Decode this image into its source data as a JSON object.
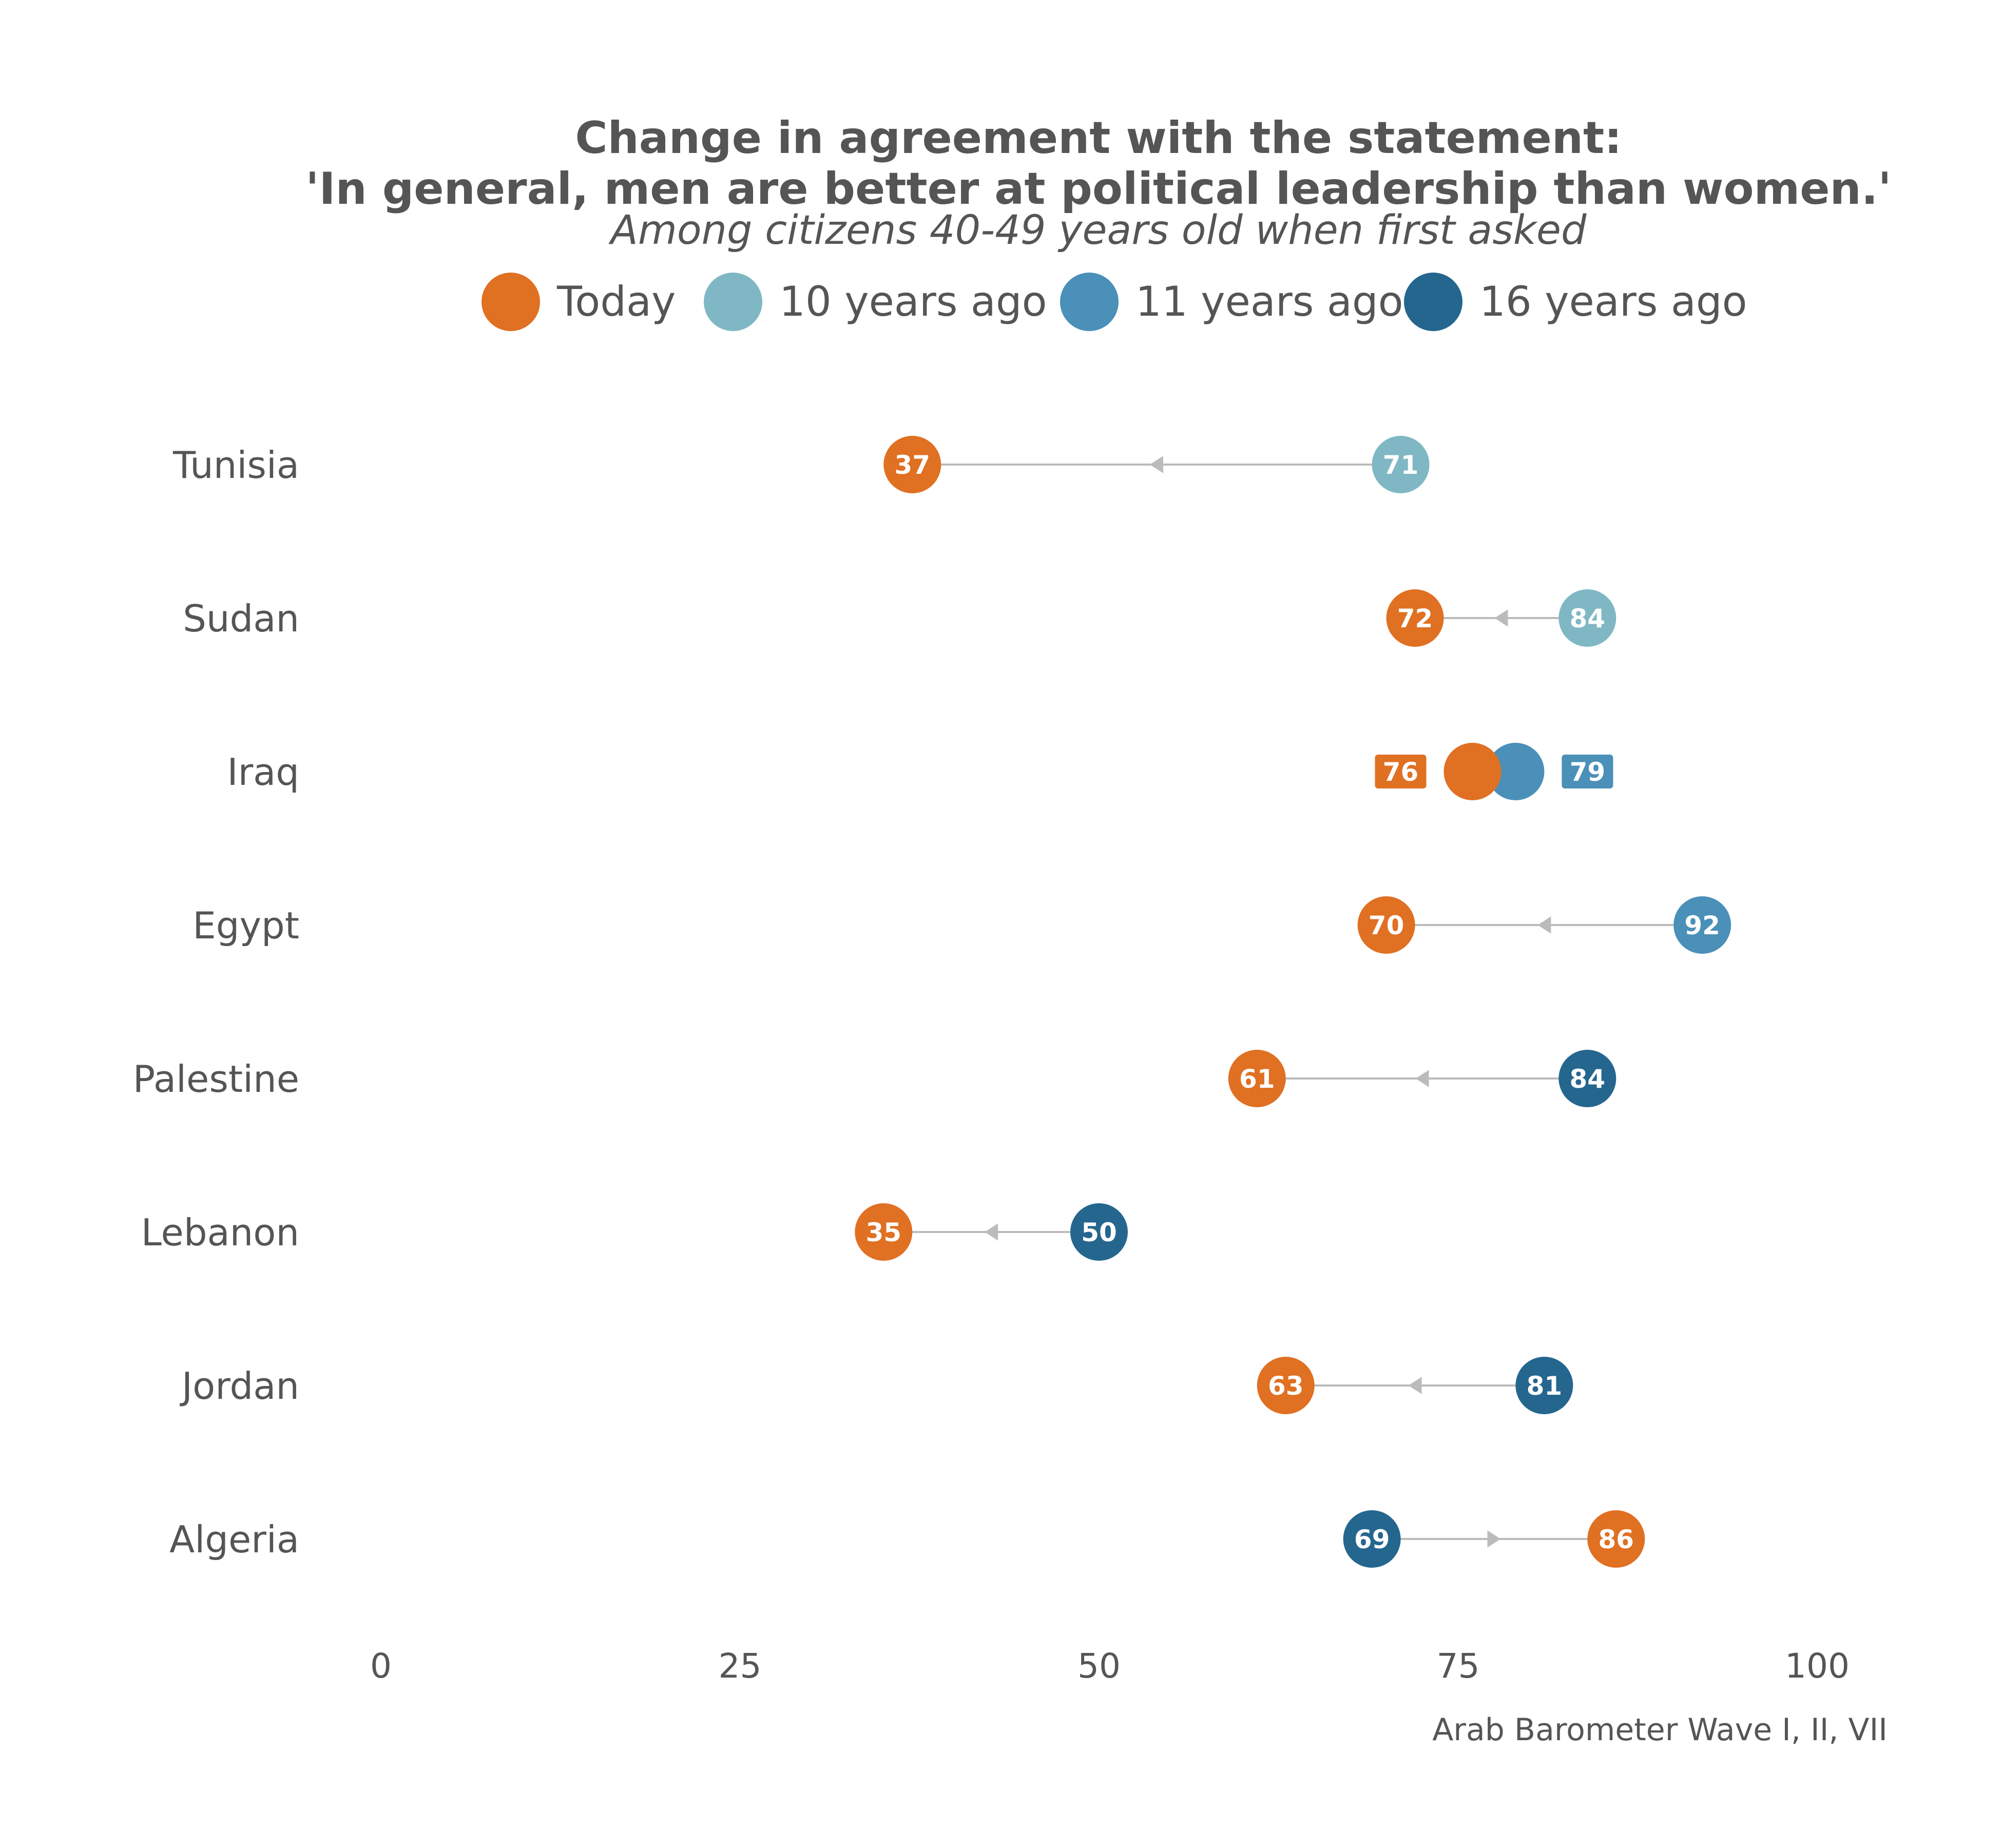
{
  "chart_data": {
    "type": "dumbbell",
    "title_lines": [
      "Change in agreement with the statement:",
      "'In general, men are better at political leadership than women.'"
    ],
    "subtitle": "Among citizens 40-49 years old when first asked",
    "source": "Arab Barometer Wave I, II, VII",
    "legend_position": "top",
    "xlim": [
      0,
      100
    ],
    "x_ticks": [
      0,
      25,
      50,
      75,
      100
    ],
    "x_tick_labels": [
      "0",
      "25",
      "50",
      "75",
      "100"
    ],
    "grid": false,
    "legend": [
      {
        "key": "today",
        "label": "Today",
        "color": "#E07022"
      },
      {
        "key": "y10",
        "label": "10 years ago",
        "color": "#7FB8C4"
      },
      {
        "key": "y11",
        "label": "11 years ago",
        "color": "#4A90B8"
      },
      {
        "key": "y16",
        "label": "16 years ago",
        "color": "#25668F"
      }
    ],
    "rows": [
      {
        "country": "Tunisia",
        "today": 37,
        "past": 71,
        "past_key": "y10",
        "today_label": "37",
        "past_label": "71"
      },
      {
        "country": "Sudan",
        "today": 72,
        "past": 84,
        "past_key": "y10",
        "today_label": "72",
        "past_label": "84"
      },
      {
        "country": "Iraq",
        "today": 76,
        "past": 79,
        "past_key": "y11",
        "today_label": "76",
        "past_label": "79",
        "boxed_labels": true
      },
      {
        "country": "Egypt",
        "today": 70,
        "past": 92,
        "past_key": "y11",
        "today_label": "70",
        "past_label": "92"
      },
      {
        "country": "Palestine",
        "today": 61,
        "past": 84,
        "past_key": "y16",
        "today_label": "61",
        "past_label": "84"
      },
      {
        "country": "Lebanon",
        "today": 35,
        "past": 50,
        "past_key": "y16",
        "today_label": "35",
        "past_label": "50"
      },
      {
        "country": "Jordan",
        "today": 63,
        "past": 81,
        "past_key": "y16",
        "today_label": "63",
        "past_label": "81"
      },
      {
        "country": "Algeria",
        "today": 86,
        "past": 69,
        "past_key": "y16",
        "today_label": "86",
        "past_label": "69"
      }
    ],
    "connector_color": "#BBBBBB"
  }
}
